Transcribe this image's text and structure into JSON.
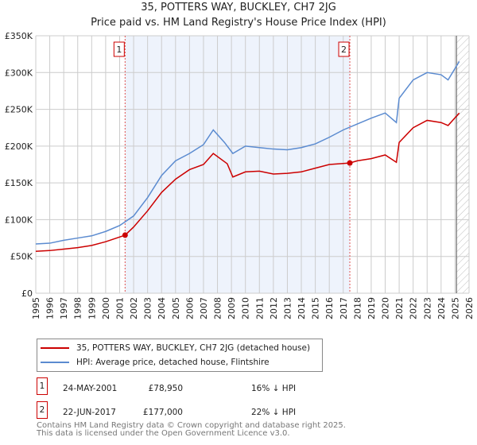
{
  "chart_data": {
    "type": "line",
    "title": "35, POTTERS WAY, BUCKLEY, CH7 2JG",
    "subtitle": "Price paid vs. HM Land Registry's House Price Index (HPI)",
    "xlim": [
      1995,
      2026
    ],
    "ylim": [
      0,
      350000
    ],
    "yticks": [
      0,
      50000,
      100000,
      150000,
      200000,
      250000,
      300000,
      350000
    ],
    "ytick_labels": [
      "£0",
      "£50K",
      "£100K",
      "£150K",
      "£200K",
      "£250K",
      "£300K",
      "£350K"
    ],
    "xticks": [
      "1995",
      "1996",
      "1997",
      "1998",
      "1999",
      "2000",
      "2001",
      "2002",
      "2003",
      "2004",
      "2005",
      "2006",
      "2007",
      "2008",
      "2009",
      "2010",
      "2011",
      "2012",
      "2013",
      "2014",
      "2015",
      "2016",
      "2017",
      "2018",
      "2019",
      "2020",
      "2021",
      "2022",
      "2023",
      "2024",
      "2025",
      "2026"
    ],
    "grid": true,
    "shaded_range": [
      2001.39,
      2017.47
    ],
    "forecast_hatch_from": 2025.1,
    "series": [
      {
        "name": "35, POTTERS WAY, BUCKLEY, CH7 2JG (detached house)",
        "color": "#cc0000",
        "x": [
          1995,
          1996,
          1997,
          1998,
          1999,
          2000,
          2001.39,
          2002,
          2003,
          2004,
          2005,
          2006,
          2007,
          2007.7,
          2008.7,
          2009.1,
          2010,
          2011,
          2012,
          2013,
          2014,
          2015,
          2016,
          2017.47,
          2018,
          2019,
          2020,
          2020.8,
          2021,
          2022,
          2023,
          2024,
          2024.5,
          2025.3
        ],
        "y": [
          57000,
          58000,
          60000,
          62000,
          65000,
          70000,
          78950,
          90000,
          112000,
          137000,
          155000,
          168000,
          175000,
          190000,
          176000,
          158000,
          165000,
          166000,
          162000,
          163000,
          165000,
          170000,
          175000,
          177000,
          180000,
          183000,
          188000,
          178000,
          205000,
          225000,
          235000,
          232000,
          228000,
          245000
        ]
      },
      {
        "name": "HPI: Average price, detached house, Flintshire",
        "color": "#5b8bd0",
        "x": [
          1995,
          1996,
          1997,
          1998,
          1999,
          2000,
          2001,
          2002,
          2003,
          2004,
          2005,
          2006,
          2007,
          2007.7,
          2008.5,
          2009.1,
          2010,
          2011,
          2012,
          2013,
          2014,
          2015,
          2016,
          2017,
          2018,
          2019,
          2020,
          2020.8,
          2021,
          2022,
          2023,
          2024,
          2024.5,
          2025.3
        ],
        "y": [
          67000,
          68000,
          72000,
          75000,
          78000,
          84000,
          92000,
          105000,
          130000,
          160000,
          180000,
          190000,
          202000,
          222000,
          205000,
          190000,
          200000,
          198000,
          196000,
          195000,
          198000,
          203000,
          212000,
          222000,
          230000,
          238000,
          245000,
          232000,
          265000,
          290000,
          300000,
          297000,
          290000,
          315000
        ]
      }
    ],
    "annotations": [
      {
        "label": "1",
        "x": 2001.39,
        "y": 78950
      },
      {
        "label": "2",
        "x": 2017.47,
        "y": 177000
      }
    ]
  },
  "legend": [
    "35, POTTERS WAY, BUCKLEY, CH7 2JG (detached house)",
    "HPI: Average price, detached house, Flintshire"
  ],
  "sales": [
    {
      "num": "1",
      "date": "24-MAY-2001",
      "price": "£78,950",
      "delta": "16% ↓ HPI"
    },
    {
      "num": "2",
      "date": "22-JUN-2017",
      "price": "£177,000",
      "delta": "22% ↓ HPI"
    }
  ],
  "footer": [
    "Contains HM Land Registry data © Crown copyright and database right 2025.",
    "This data is licensed under the Open Government Licence v3.0."
  ]
}
